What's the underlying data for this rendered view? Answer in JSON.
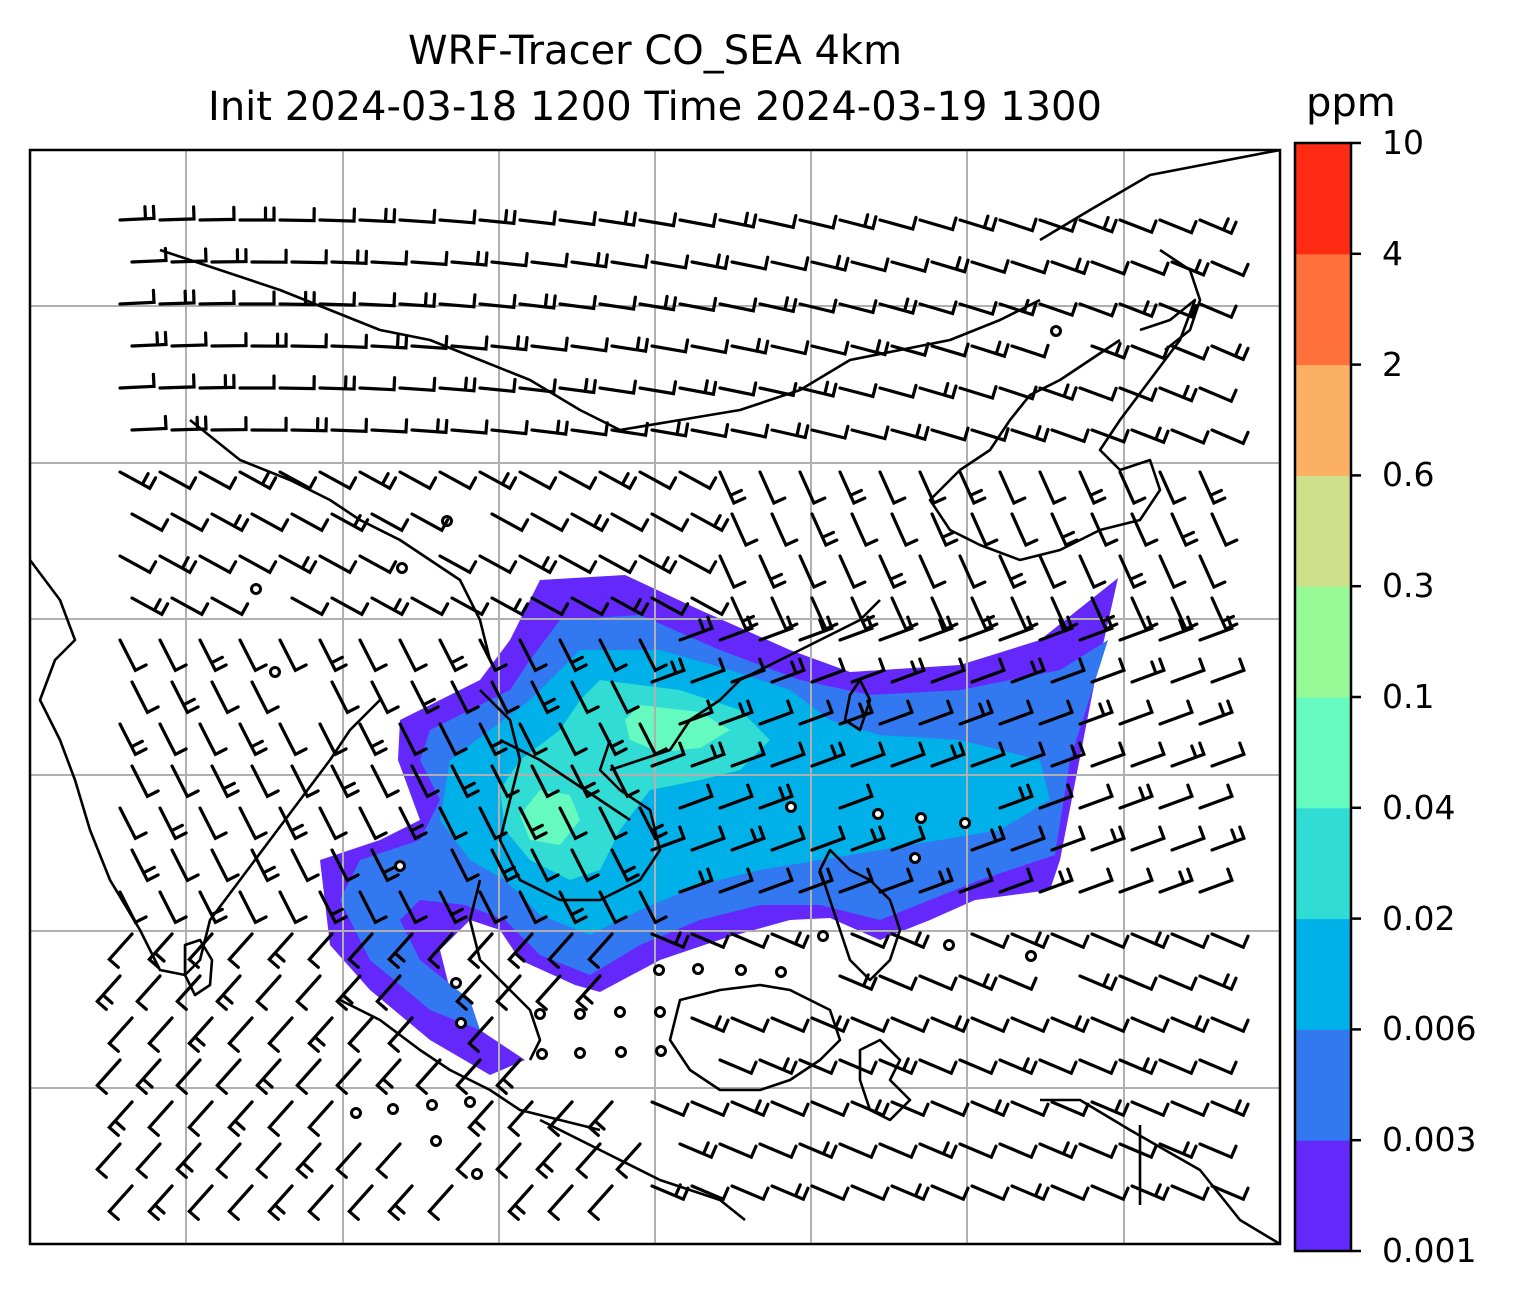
{
  "title": {
    "line1": "WRF-Tracer CO_SEA 4km",
    "line2": "Init 2024-03-18 1200 Time 2024-03-19 1300"
  },
  "colorbar": {
    "unit": "ppm",
    "levels": [
      "0.001",
      "0.003",
      "0.006",
      "0.02",
      "0.04",
      "0.1",
      "0.3",
      "0.6",
      "2",
      "4",
      "10"
    ],
    "colors": [
      "#6428fa",
      "#3278f0",
      "#00b0e8",
      "#30dcd4",
      "#64fac0",
      "#96fa96",
      "#d0e08a",
      "#fcb064",
      "#ff703a",
      "#ff2a14"
    ]
  },
  "map": {
    "gridlines": true,
    "wind_barbs": true,
    "calm_marker": "circle"
  }
}
